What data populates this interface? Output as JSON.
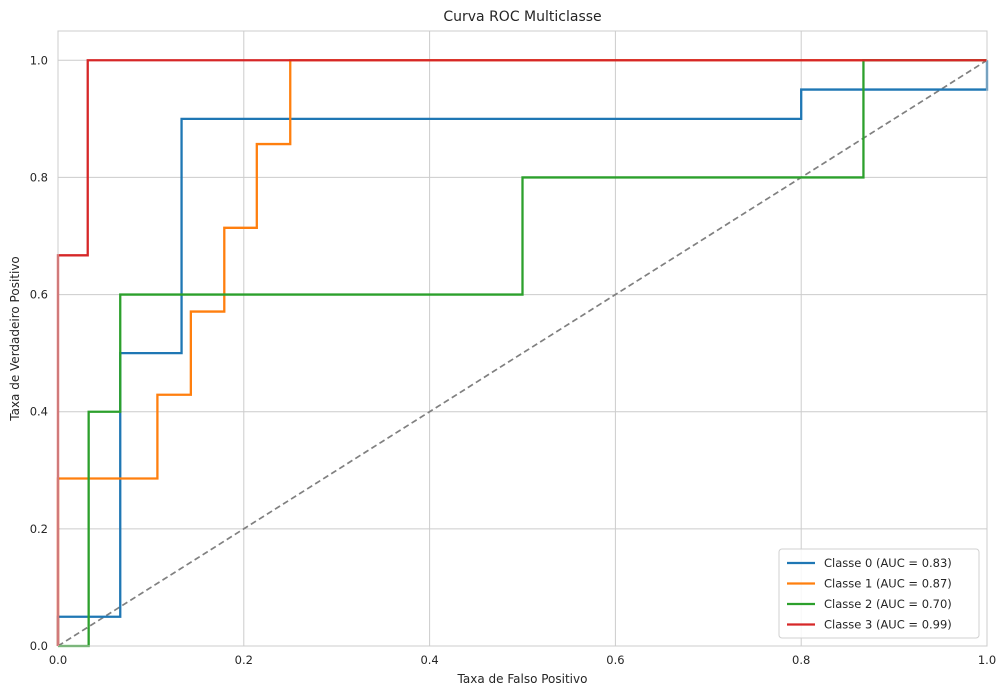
{
  "chart_data": {
    "type": "line",
    "title": "Curva ROC Multiclasse",
    "xlabel": "Taxa de Falso Positivo",
    "ylabel": "Taxa de Verdadeiro Positivo",
    "xlim": [
      0.0,
      1.0
    ],
    "ylim": [
      0.0,
      1.05
    ],
    "x_ticks": [
      "0.0",
      "0.2",
      "0.4",
      "0.6",
      "0.8",
      "1.0"
    ],
    "y_ticks": [
      "0.0",
      "0.2",
      "0.4",
      "0.6",
      "0.8",
      "1.0"
    ],
    "grid": true,
    "legend_position": "lower-right",
    "series": [
      {
        "name": "Classe 0 (AUC = 0.83)",
        "color": "#1f77b4",
        "points": [
          [
            0.0,
            0.0
          ],
          [
            0.0,
            0.05
          ],
          [
            0.067,
            0.05
          ],
          [
            0.067,
            0.5
          ],
          [
            0.133,
            0.5
          ],
          [
            0.133,
            0.9
          ],
          [
            0.8,
            0.9
          ],
          [
            0.8,
            0.95
          ],
          [
            1.0,
            0.95
          ],
          [
            1.0,
            1.0
          ]
        ]
      },
      {
        "name": "Classe 1 (AUC = 0.87)",
        "color": "#ff7f0e",
        "points": [
          [
            0.0,
            0.0
          ],
          [
            0.0,
            0.286
          ],
          [
            0.107,
            0.286
          ],
          [
            0.107,
            0.429
          ],
          [
            0.143,
            0.429
          ],
          [
            0.143,
            0.571
          ],
          [
            0.179,
            0.571
          ],
          [
            0.179,
            0.714
          ],
          [
            0.214,
            0.714
          ],
          [
            0.214,
            0.857
          ],
          [
            0.25,
            0.857
          ],
          [
            0.25,
            1.0
          ],
          [
            1.0,
            1.0
          ]
        ]
      },
      {
        "name": "Classe 2 (AUC = 0.70)",
        "color": "#2ca02c",
        "points": [
          [
            0.0,
            0.0
          ],
          [
            0.033,
            0.0
          ],
          [
            0.033,
            0.4
          ],
          [
            0.067,
            0.4
          ],
          [
            0.067,
            0.6
          ],
          [
            0.5,
            0.6
          ],
          [
            0.5,
            0.8
          ],
          [
            0.867,
            0.8
          ],
          [
            0.867,
            1.0
          ],
          [
            1.0,
            1.0
          ]
        ]
      },
      {
        "name": "Classe 3 (AUC = 0.99)",
        "color": "#d62728",
        "points": [
          [
            0.0,
            0.0
          ],
          [
            0.0,
            0.667
          ],
          [
            0.032,
            0.667
          ],
          [
            0.032,
            1.0
          ],
          [
            1.0,
            1.0
          ]
        ]
      }
    ],
    "reference_line": {
      "color": "#808080",
      "points": [
        [
          0.0,
          0.0
        ],
        [
          1.0,
          1.0
        ]
      ]
    }
  }
}
